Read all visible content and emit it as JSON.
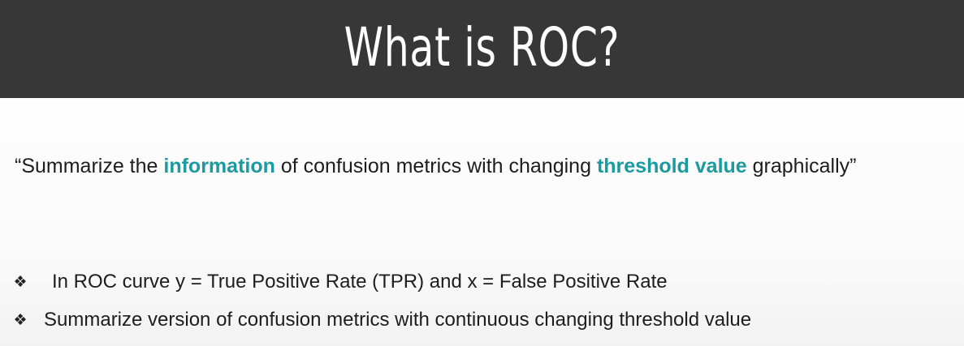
{
  "header": {
    "title": "What is ROC?"
  },
  "quote": {
    "part1": "“Summarize the ",
    "highlight1": "information",
    "part2": " of confusion metrics with changing ",
    "highlight2": "threshold value",
    "part3": " graphically”"
  },
  "bullets": [
    {
      "icon": "four-diamond-bullet-icon",
      "text": "In ROC curve y = True Positive Rate (TPR) and x = False Positive Rate"
    },
    {
      "icon": "four-diamond-bullet-icon",
      "text": "Summarize version of  confusion metrics with continuous changing threshold value"
    }
  ],
  "colors": {
    "header_bg": "#373737",
    "accent": "#1b9aa0"
  }
}
